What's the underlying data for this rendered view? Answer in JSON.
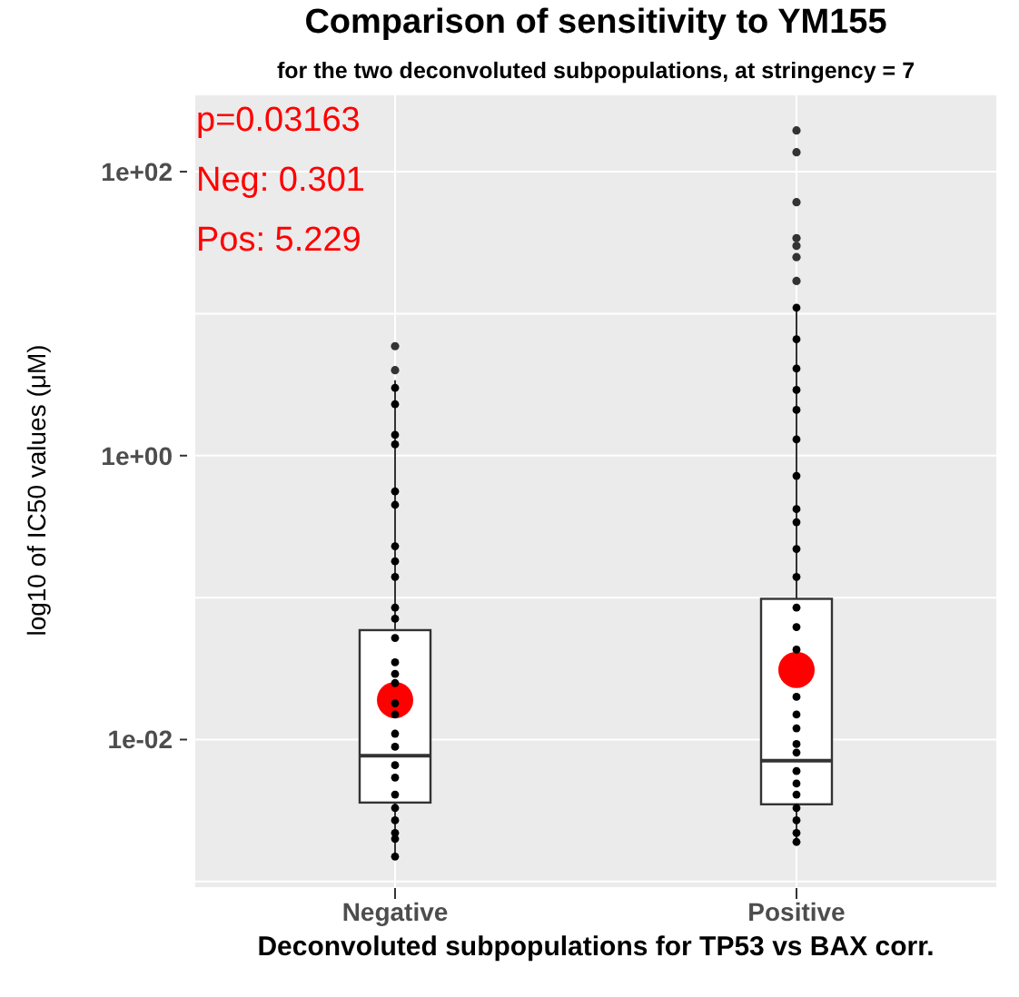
{
  "chart_data": {
    "type": "box",
    "title": "Comparison of sensitivity to YM155",
    "subtitle": "for the two deconvoluted subpopulations, at stringency = 7",
    "xlabel": "Deconvoluted subpopulations for TP53 vs BAX corr.",
    "ylabel": "log10 of IC50 values (μM)",
    "annotations": [
      "p=0.03163",
      "Neg: 0.301",
      "Pos: 5.229"
    ],
    "categories": [
      "Negative",
      "Positive"
    ],
    "log": "y",
    "ylim": [
      0.0009,
      350
    ],
    "yticks": [
      {
        "value": 0.001,
        "label": null
      },
      {
        "value": 0.01,
        "label": "1e-02"
      },
      {
        "value": 0.1,
        "label": null
      },
      {
        "value": 1,
        "label": "1e+00"
      },
      {
        "value": 10,
        "label": null
      },
      {
        "value": 100,
        "label": "1e+02"
      }
    ],
    "grid": true,
    "legend": false,
    "series": [
      {
        "color": "#ffffff",
        "boxes": [
          {
            "low": 0.0015,
            "q1": 0.0036,
            "median": 0.0077,
            "q3": 0.059,
            "high": 3.4,
            "outliers": [
              5.9,
              4.0
            ]
          },
          {
            "low": 0.0019,
            "q1": 0.0035,
            "median": 0.0071,
            "q3": 0.098,
            "high": 11,
            "outliers": [
              195,
              137,
              61,
              34,
              30,
              25,
              17
            ]
          }
        ]
      },
      {
        "type": "scatter",
        "color": "#ff0000",
        "marker": "circle",
        "x": [
          "Negative",
          "Positive"
        ],
        "values": [
          0.019,
          0.031
        ]
      },
      {
        "type": "scatter",
        "color": "#000000",
        "marker": "circle",
        "x": [
          "Negative",
          "Negative",
          "Negative",
          "Negative",
          "Negative",
          "Negative",
          "Negative",
          "Negative",
          "Negative",
          "Negative",
          "Negative",
          "Negative",
          "Negative",
          "Negative",
          "Negative",
          "Negative",
          "Negative",
          "Negative",
          "Negative",
          "Negative",
          "Negative",
          "Negative",
          "Negative",
          "Negative",
          "Negative",
          "Negative",
          "Negative",
          "Positive",
          "Positive",
          "Positive",
          "Positive",
          "Positive",
          "Positive",
          "Positive",
          "Positive",
          "Positive",
          "Positive",
          "Positive",
          "Positive",
          "Positive",
          "Positive",
          "Positive",
          "Positive",
          "Positive",
          "Positive",
          "Positive",
          "Positive",
          "Positive",
          "Positive",
          "Positive",
          "Positive",
          "Positive",
          "Positive"
        ],
        "values": [
          3.0,
          2.3,
          1.4,
          1.2,
          0.56,
          0.45,
          0.23,
          0.18,
          0.14,
          0.085,
          0.071,
          0.052,
          0.035,
          0.029,
          0.025,
          0.018,
          0.015,
          0.011,
          0.0089,
          0.0066,
          0.0054,
          0.0041,
          0.0033,
          0.0027,
          0.0022,
          0.002,
          0.0015,
          11,
          6.6,
          4.1,
          2.9,
          2.1,
          1.3,
          0.72,
          0.42,
          0.34,
          0.22,
          0.14,
          0.085,
          0.062,
          0.043,
          0.02,
          0.015,
          0.012,
          0.0093,
          0.0081,
          0.006,
          0.0049,
          0.0041,
          0.0033,
          0.0027,
          0.0022,
          0.0019
        ]
      }
    ]
  }
}
